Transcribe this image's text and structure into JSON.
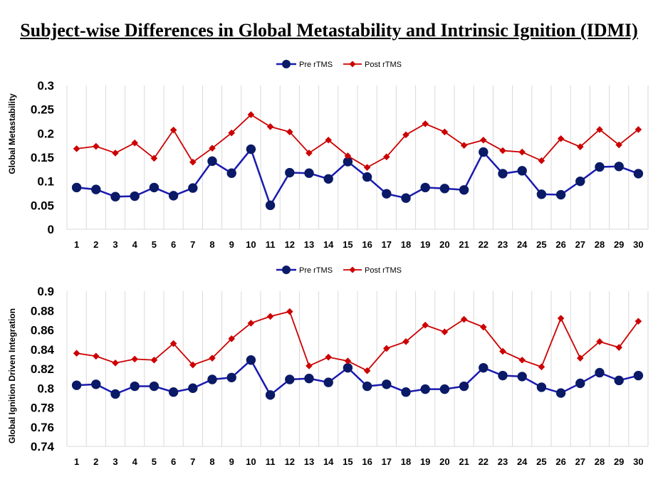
{
  "title": "Subject-wise Differences in Global Metastability and Intrinsic Ignition (IDMI)",
  "chart_data": [
    {
      "type": "line",
      "ylabel": "Global Metastability",
      "xlabel": "",
      "ylim": [
        0,
        0.3
      ],
      "yticks": [
        "0",
        "0.05",
        "0.1",
        "0.15",
        "0.2",
        "0.25",
        "0.3"
      ],
      "categories": [
        "1",
        "2",
        "3",
        "4",
        "5",
        "6",
        "7",
        "8",
        "9",
        "10",
        "11",
        "12",
        "13",
        "14",
        "15",
        "16",
        "17",
        "18",
        "19",
        "20",
        "21",
        "22",
        "23",
        "24",
        "25",
        "26",
        "27",
        "28",
        "29",
        "30"
      ],
      "series": [
        {
          "name": "Pre rTMS",
          "color": "#1a1ab0",
          "marker": "circle",
          "values": [
            0.087,
            0.083,
            0.068,
            0.069,
            0.087,
            0.07,
            0.086,
            0.142,
            0.117,
            0.167,
            0.05,
            0.118,
            0.117,
            0.105,
            0.141,
            0.109,
            0.074,
            0.065,
            0.087,
            0.085,
            0.082,
            0.161,
            0.116,
            0.122,
            0.073,
            0.072,
            0.1,
            0.13,
            0.131,
            0.116
          ]
        },
        {
          "name": "Post rTMS",
          "color": "#cc0000",
          "marker": "diamond",
          "values": [
            0.168,
            0.173,
            0.159,
            0.18,
            0.148,
            0.207,
            0.14,
            0.169,
            0.201,
            0.239,
            0.214,
            0.203,
            0.159,
            0.186,
            0.153,
            0.129,
            0.151,
            0.197,
            0.22,
            0.203,
            0.175,
            0.186,
            0.164,
            0.161,
            0.143,
            0.189,
            0.172,
            0.208,
            0.176,
            0.208
          ]
        }
      ]
    },
    {
      "type": "line",
      "ylabel": "Global Ignition Driven Integration",
      "xlabel": "",
      "ylim": [
        0.74,
        0.9
      ],
      "yticks": [
        "0.74",
        "0.76",
        "0.78",
        "0.8",
        "0.82",
        "0.84",
        "0.86",
        "0.88",
        "0.9"
      ],
      "categories": [
        "1",
        "2",
        "3",
        "4",
        "5",
        "6",
        "7",
        "8",
        "9",
        "10",
        "11",
        "12",
        "13",
        "14",
        "15",
        "16",
        "17",
        "18",
        "19",
        "20",
        "21",
        "22",
        "23",
        "24",
        "25",
        "26",
        "27",
        "28",
        "29",
        "30"
      ],
      "series": [
        {
          "name": "Pre rTMS",
          "color": "#1a1ab0",
          "marker": "circle",
          "values": [
            0.803,
            0.804,
            0.794,
            0.802,
            0.802,
            0.796,
            0.8,
            0.809,
            0.811,
            0.829,
            0.793,
            0.809,
            0.81,
            0.806,
            0.821,
            0.802,
            0.804,
            0.796,
            0.799,
            0.799,
            0.802,
            0.821,
            0.813,
            0.812,
            0.801,
            0.795,
            0.805,
            0.816,
            0.808,
            0.813
          ]
        },
        {
          "name": "Post rTMS",
          "color": "#cc0000",
          "marker": "diamond",
          "values": [
            0.836,
            0.833,
            0.826,
            0.83,
            0.829,
            0.846,
            0.824,
            0.831,
            0.851,
            0.867,
            0.874,
            0.879,
            0.823,
            0.832,
            0.828,
            0.818,
            0.841,
            0.848,
            0.865,
            0.858,
            0.871,
            0.863,
            0.838,
            0.829,
            0.822,
            0.872,
            0.831,
            0.848,
            0.842,
            0.869
          ]
        }
      ]
    }
  ]
}
